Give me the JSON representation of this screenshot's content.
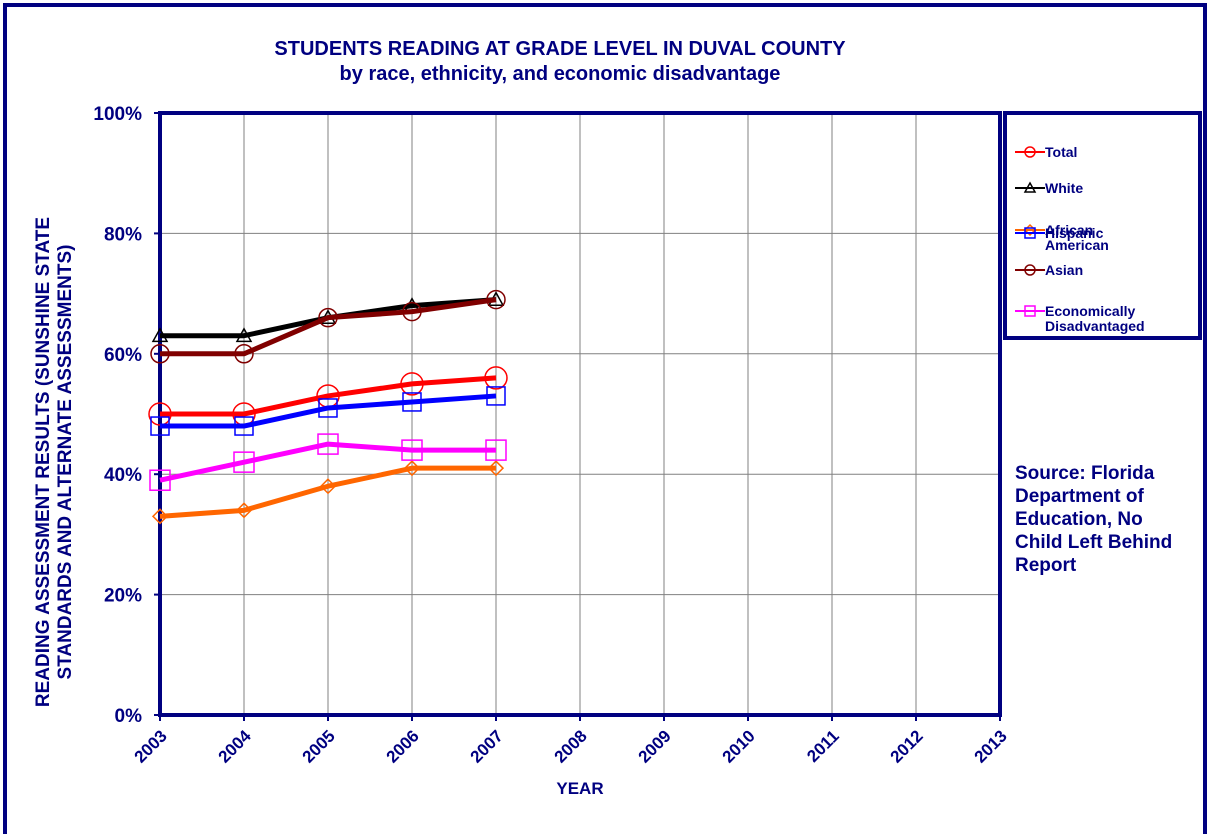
{
  "chart_data": {
    "type": "line",
    "title": "STUDENTS READING AT GRADE LEVEL IN DUVAL COUNTY",
    "subtitle": "by race, ethnicity, and economic disadvantage",
    "x_label": "YEAR",
    "y_label": "READING ASSESSMENT RESULTS (SUNSHINE STATE STANDARDS AND ALTERNATE ASSESSMENTS)",
    "annotation": "Source: Florida Department of Education, No Child Left Behind Report",
    "x": [
      2003,
      2004,
      2005,
      2006,
      2007
    ],
    "xlim": [
      2003,
      2013
    ],
    "xticks": [
      2003,
      2004,
      2005,
      2006,
      2007,
      2008,
      2009,
      2010,
      2011,
      2012,
      2013
    ],
    "ylim": [
      0,
      100
    ],
    "yticks": [
      {
        "value": 0,
        "label": "0%"
      },
      {
        "value": 20,
        "label": "20%"
      },
      {
        "value": 40,
        "label": "40%"
      },
      {
        "value": 60,
        "label": "60%"
      },
      {
        "value": 80,
        "label": "80%"
      },
      {
        "value": 100,
        "label": "100%"
      }
    ],
    "grid": true,
    "legend": "right",
    "series": [
      {
        "name": "Total",
        "color": "#ff0000",
        "marker": "circle",
        "values": [
          50,
          50,
          53,
          55,
          56
        ]
      },
      {
        "name": "White",
        "color": "#000000",
        "marker": "triangle",
        "values": [
          63,
          63,
          66,
          68,
          69
        ]
      },
      {
        "name": "African American",
        "color": "#ff6600",
        "marker": "diamond",
        "values": [
          33,
          34,
          38,
          41,
          41
        ]
      },
      {
        "name": "Hispanic",
        "color": "#0000ff",
        "marker": "square",
        "values": [
          48,
          48,
          51,
          52,
          53
        ]
      },
      {
        "name": "Asian",
        "color": "#800000",
        "marker": "circle",
        "values": [
          60,
          60,
          66,
          67,
          69
        ]
      },
      {
        "name": "Economically Disadvantaged",
        "color": "#ff00ff",
        "marker": "square",
        "values": [
          39,
          42,
          45,
          44,
          44
        ]
      }
    ]
  }
}
